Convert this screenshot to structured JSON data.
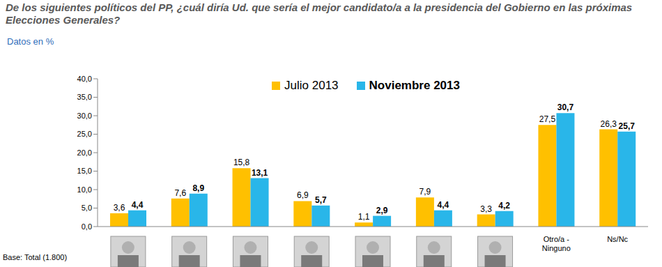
{
  "chart_data": {
    "type": "bar",
    "title": "De los siguientes políticos del PP, ¿cuál diría Ud. que sería el mejor candidato/a a la presidencia del Gobierno en las próximas Elecciones Generales?",
    "subtitle": "Datos en %",
    "annotations": [
      "Base: Total (1.800)"
    ],
    "categories": [
      null,
      null,
      null,
      null,
      null,
      null,
      null,
      "Otro/a - Ninguno",
      "Ns/Nc"
    ],
    "series": [
      {
        "name": "Julio 2013",
        "color": "#FFC000",
        "values": [
          3.6,
          7.6,
          15.8,
          6.9,
          1.1,
          7.9,
          3.3,
          27.5,
          26.3
        ],
        "value_labels": [
          "3,6",
          "7,6",
          "15,8",
          "6,9",
          "1,1",
          "7,9",
          "3,3",
          "27,5",
          "26,3"
        ]
      },
      {
        "name": "Noviembre 2013",
        "color": "#29B6E9",
        "values": [
          4.4,
          8.9,
          13.1,
          5.7,
          2.9,
          4.4,
          4.2,
          30.7,
          25.7
        ],
        "value_labels": [
          "4,4",
          "8,9",
          "13,1",
          "5,7",
          "2,9",
          "4,4",
          "4,2",
          "30,7",
          "25,7"
        ]
      }
    ],
    "ylim": [
      0,
      40
    ],
    "yticks": [
      {
        "value": 0,
        "label": "0,0"
      },
      {
        "value": 5,
        "label": "5,0"
      },
      {
        "value": 10,
        "label": "10,0"
      },
      {
        "value": 15,
        "label": "15,0"
      },
      {
        "value": 20,
        "label": "20,0"
      },
      {
        "value": 25,
        "label": "25,0"
      },
      {
        "value": 30,
        "label": "30,0"
      },
      {
        "value": 35,
        "label": "35,0"
      },
      {
        "value": 40,
        "label": "40,0"
      }
    ],
    "grid": false,
    "legend": "top",
    "data_labels": true
  }
}
